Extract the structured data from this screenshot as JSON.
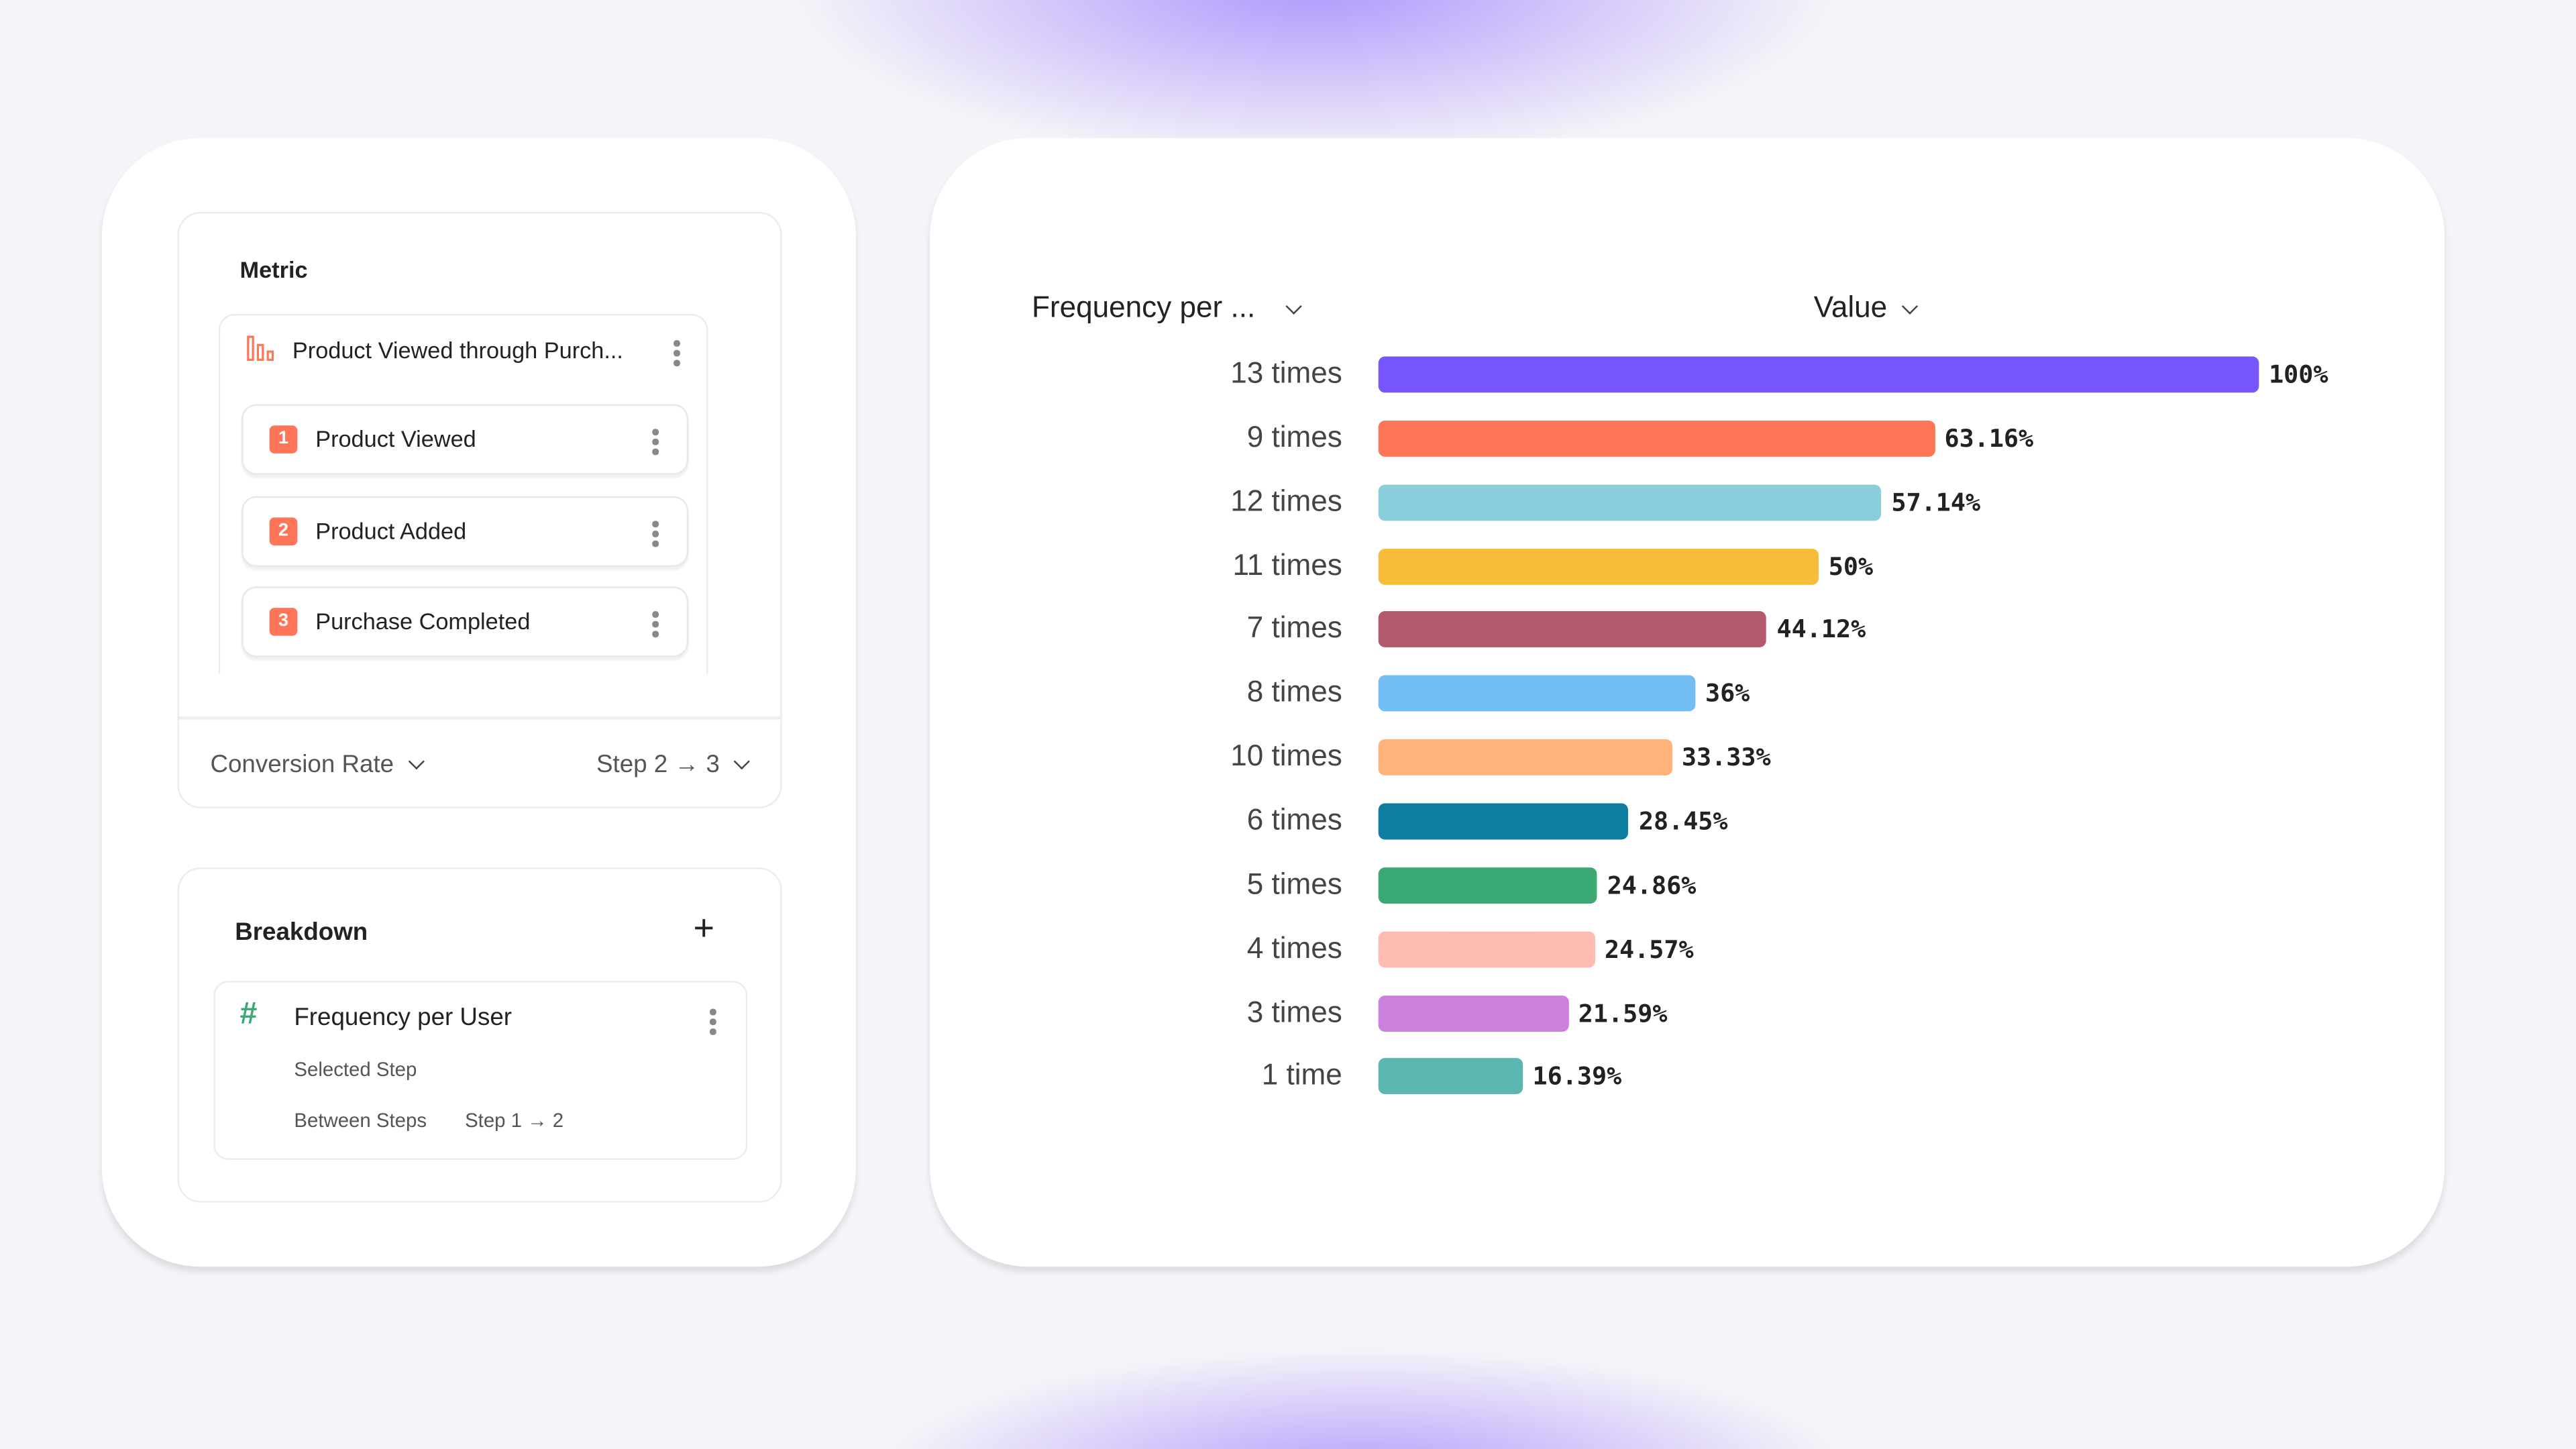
{
  "metric_panel": {
    "title": "Metric",
    "funnel_name": "Product Viewed through Purch...",
    "funnel_icon": "funnel-bars-icon",
    "steps": [
      {
        "number": "1",
        "label": "Product Viewed"
      },
      {
        "number": "2",
        "label": "Product Added"
      },
      {
        "number": "3",
        "label": "Purchase Completed"
      }
    ],
    "measure_dropdown": "Conversion Rate",
    "step_dropdown": "Step 2 → 3",
    "accent": "#FF7557"
  },
  "breakdown_panel": {
    "title": "Breakdown",
    "add_icon": "plus-icon",
    "item": {
      "icon": "hash-icon",
      "label": "Frequency per User",
      "detail1": "Selected Step",
      "detail2_label": "Between Steps",
      "detail2_value": "Step 1 → 2"
    }
  },
  "chart_header": {
    "column1": "Frequency per ...",
    "column2": "Value"
  },
  "chart_data": {
    "type": "bar",
    "orientation": "horizontal",
    "categories": [
      "13 times",
      "9 times",
      "12 times",
      "11 times",
      "7 times",
      "8 times",
      "10 times",
      "6 times",
      "5 times",
      "4 times",
      "3 times",
      "1 time"
    ],
    "values": [
      100,
      63.16,
      57.14,
      50,
      44.12,
      36,
      33.33,
      28.45,
      24.86,
      24.57,
      21.59,
      16.39
    ],
    "value_labels": [
      "100%",
      "63.16%",
      "57.14%",
      "50%",
      "44.12%",
      "36%",
      "33.33%",
      "28.45%",
      "24.86%",
      "24.57%",
      "21.59%",
      "16.39%"
    ],
    "colors": [
      "#7856FF",
      "#FF7557",
      "#8ACEDB",
      "#F8BC3B",
      "#B2596E",
      "#72BEF4",
      "#FFB27A",
      "#0D7EA0",
      "#3BA974",
      "#FEBBB2",
      "#CA80DC",
      "#5BB7AF"
    ],
    "xlim": [
      0,
      100
    ],
    "grid": false
  }
}
